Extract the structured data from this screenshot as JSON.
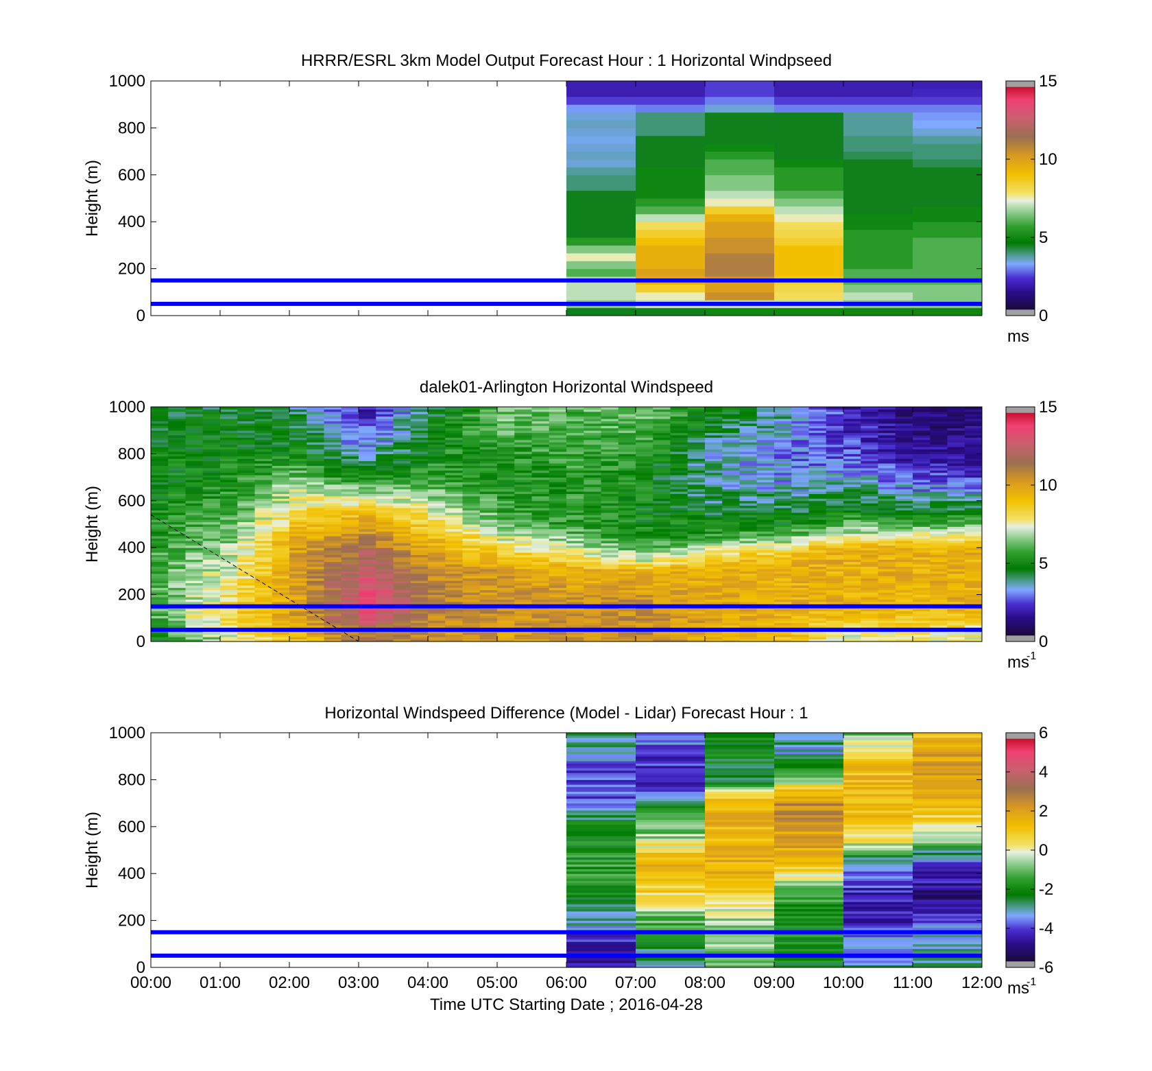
{
  "chart_data": [
    {
      "type": "heatmap",
      "title": "HRRR/ESRL 3km Model Output   Forecast Hour : 1 Horizontal Windpseed",
      "xlabel": "",
      "ylabel": "Height (m)",
      "xlim": [
        0,
        12
      ],
      "ylim": [
        0,
        1000
      ],
      "x_ticks": [
        "00:00",
        "01:00",
        "02:00",
        "03:00",
        "04:00",
        "05:00",
        "06:00",
        "07:00",
        "08:00",
        "09:00",
        "10:00",
        "11:00",
        "12:00"
      ],
      "y_ticks": [
        "0",
        "200",
        "400",
        "600",
        "800",
        "1000"
      ],
      "show_x_tick_labels": false,
      "colorbar": {
        "min": 0,
        "max": 15,
        "ticks": [
          "0",
          "5",
          "10",
          "15"
        ],
        "unit": "ms",
        "unit_exp": ""
      },
      "reference_heights_m": [
        50,
        150
      ],
      "columns": [
        {
          "x_start": 6,
          "x_end": 7,
          "values": [
            4.5,
            6.5,
            7,
            7,
            7,
            6,
            6.5,
            7.5,
            6.5,
            5.5,
            4.5,
            4.5,
            4.5,
            4.5,
            4.5,
            4.5,
            4,
            4,
            3.8,
            3.5,
            3.6,
            3.5,
            3.4,
            3.5,
            3.6,
            3.5,
            3.2,
            2.5,
            2,
            2
          ]
        },
        {
          "x_start": 7,
          "x_end": 8,
          "values": [
            4.5,
            7,
            7.5,
            8.5,
            9.5,
            10,
            9.5,
            9.5,
            9.5,
            9,
            8.5,
            8,
            7,
            6,
            5.5,
            5,
            5,
            5,
            5,
            4.5,
            4.5,
            4.5,
            4.5,
            4,
            4,
            4,
            3,
            2.5,
            2,
            2
          ]
        },
        {
          "x_start": 8,
          "x_end": 9,
          "values": [
            5,
            7,
            10.5,
            10,
            10,
            11,
            11,
            11,
            10.5,
            10.5,
            10,
            10,
            9.5,
            8.5,
            7.5,
            7,
            6.5,
            6.5,
            6,
            6,
            5.5,
            5,
            4.5,
            4.5,
            4.5,
            4.5,
            3.5,
            3,
            2.5,
            2.5
          ]
        },
        {
          "x_start": 9,
          "x_end": 10,
          "values": [
            5,
            7,
            8,
            8.2,
            8.5,
            9,
            9,
            9,
            9,
            8.5,
            8.2,
            8,
            7.5,
            7,
            6.5,
            6,
            5.5,
            5.5,
            5.5,
            5,
            4.5,
            4.5,
            4.5,
            4.5,
            4.5,
            4.5,
            3,
            2.5,
            2,
            2
          ]
        },
        {
          "x_start": 10,
          "x_end": 11,
          "values": [
            5,
            6.5,
            7,
            6.5,
            6,
            6,
            5.5,
            5.5,
            5.5,
            5.5,
            5.5,
            5,
            5,
            4.5,
            4.5,
            4.5,
            4.5,
            4.5,
            4.5,
            4.5,
            4.2,
            4,
            4,
            3.8,
            3.8,
            3.8,
            3,
            2.5,
            2,
            2
          ]
        },
        {
          "x_start": 11,
          "x_end": 12,
          "values": [
            5,
            6.5,
            6.5,
            6.5,
            6,
            6,
            6,
            6,
            6,
            6,
            5.5,
            5.5,
            5,
            5,
            4.5,
            4.5,
            4.5,
            4.5,
            4.5,
            4.2,
            4,
            4,
            3.8,
            3.5,
            3.3,
            3.2,
            3,
            2.5,
            2.2,
            2
          ]
        }
      ]
    },
    {
      "type": "heatmap",
      "title": "dalek01-Arlington  Horizontal Windspeed",
      "xlabel": "",
      "ylabel": "Height (m)",
      "xlim": [
        0,
        12
      ],
      "ylim": [
        0,
        1000
      ],
      "x_ticks": [
        "00:00",
        "01:00",
        "02:00",
        "03:00",
        "04:00",
        "05:00",
        "06:00",
        "07:00",
        "08:00",
        "09:00",
        "10:00",
        "11:00",
        "12:00"
      ],
      "y_ticks": [
        "0",
        "200",
        "400",
        "600",
        "800",
        "1000"
      ],
      "show_x_tick_labels": false,
      "colorbar": {
        "min": 0,
        "max": 15,
        "ticks": [
          "0",
          "5",
          "10",
          "15"
        ],
        "unit": "ms",
        "unit_exp": "-1"
      },
      "reference_heights_m": [
        50,
        150
      ],
      "time_keys_h": [
        0,
        1,
        2,
        3,
        4,
        5,
        6,
        7,
        8,
        9,
        10,
        11,
        11.85
      ],
      "profiles": [
        [
          [
            0,
            5
          ],
          [
            100,
            6
          ],
          [
            300,
            6
          ],
          [
            600,
            5
          ],
          [
            1000,
            4.5
          ]
        ],
        [
          [
            0,
            7
          ],
          [
            100,
            8.5
          ],
          [
            350,
            7
          ],
          [
            600,
            5.5
          ],
          [
            1000,
            4.5
          ]
        ],
        [
          [
            0,
            9
          ],
          [
            100,
            10
          ],
          [
            400,
            10
          ],
          [
            650,
            7
          ],
          [
            800,
            5
          ],
          [
            1000,
            4
          ]
        ],
        [
          [
            0,
            11
          ],
          [
            150,
            13.5
          ],
          [
            250,
            13
          ],
          [
            400,
            11.5
          ],
          [
            550,
            9
          ],
          [
            700,
            5
          ],
          [
            850,
            3
          ],
          [
            1000,
            2
          ]
        ],
        [
          [
            0,
            10.5
          ],
          [
            150,
            11
          ],
          [
            300,
            10.5
          ],
          [
            450,
            9
          ],
          [
            550,
            7.5
          ],
          [
            700,
            5.5
          ],
          [
            1000,
            4.5
          ]
        ],
        [
          [
            0,
            10
          ],
          [
            150,
            10.5
          ],
          [
            300,
            10
          ],
          [
            400,
            8
          ],
          [
            500,
            6
          ],
          [
            700,
            5
          ],
          [
            1000,
            6.5
          ]
        ],
        [
          [
            0,
            10.5
          ],
          [
            150,
            10.5
          ],
          [
            300,
            9.5
          ],
          [
            380,
            7.5
          ],
          [
            500,
            5.5
          ],
          [
            700,
            5.5
          ],
          [
            1000,
            6
          ]
        ],
        [
          [
            0,
            10.5
          ],
          [
            150,
            10.5
          ],
          [
            300,
            9.5
          ],
          [
            350,
            7
          ],
          [
            450,
            5
          ],
          [
            700,
            5
          ],
          [
            1000,
            6.5
          ]
        ],
        [
          [
            0,
            9.5
          ],
          [
            150,
            10
          ],
          [
            300,
            9.5
          ],
          [
            380,
            8
          ],
          [
            450,
            5.5
          ],
          [
            600,
            4
          ],
          [
            800,
            3.5
          ],
          [
            1000,
            5
          ]
        ],
        [
          [
            0,
            9
          ],
          [
            150,
            9.5
          ],
          [
            350,
            9.5
          ],
          [
            420,
            7
          ],
          [
            500,
            5
          ],
          [
            650,
            3.5
          ],
          [
            800,
            3
          ],
          [
            1000,
            4
          ]
        ],
        [
          [
            0,
            7
          ],
          [
            150,
            9.5
          ],
          [
            400,
            9.5
          ],
          [
            460,
            7
          ],
          [
            550,
            5
          ],
          [
            700,
            3.5
          ],
          [
            800,
            2.5
          ],
          [
            1000,
            2
          ]
        ],
        [
          [
            0,
            7.5
          ],
          [
            150,
            9.5
          ],
          [
            400,
            9.5
          ],
          [
            470,
            7
          ],
          [
            550,
            4.5
          ],
          [
            700,
            2.5
          ],
          [
            800,
            1.5
          ],
          [
            1000,
            1
          ]
        ],
        [
          [
            0,
            7
          ],
          [
            150,
            9.5
          ],
          [
            400,
            9.5
          ],
          [
            480,
            7
          ],
          [
            560,
            4.5
          ],
          [
            700,
            2.5
          ],
          [
            850,
            1.5
          ],
          [
            1000,
            0.8
          ]
        ]
      ]
    },
    {
      "type": "heatmap",
      "title": "Horizontal Windspeed Difference (Model - Lidar) Forecast Hour : 1",
      "xlabel": "Time UTC  Starting Date ; 2016-04-28",
      "ylabel": "Height (m)",
      "xlim": [
        0,
        12
      ],
      "ylim": [
        0,
        1000
      ],
      "x_ticks": [
        "00:00",
        "01:00",
        "02:00",
        "03:00",
        "04:00",
        "05:00",
        "06:00",
        "07:00",
        "08:00",
        "09:00",
        "10:00",
        "11:00",
        "12:00"
      ],
      "y_ticks": [
        "0",
        "200",
        "400",
        "600",
        "800",
        "1000"
      ],
      "show_x_tick_labels": true,
      "colorbar": {
        "min": -6,
        "max": 6,
        "ticks": [
          "-6",
          "-4",
          "-2",
          "0",
          "2",
          "4",
          "6"
        ],
        "unit": "ms",
        "unit_exp": "-1"
      },
      "reference_heights_m": [
        50,
        150
      ],
      "profiles_diff": [
        {
          "x_start": 6,
          "x_end": 7,
          "points": [
            [
              0,
              -4.5
            ],
            [
              100,
              -4.5
            ],
            [
              200,
              -3
            ],
            [
              400,
              -1.5
            ],
            [
              650,
              -2.5
            ],
            [
              720,
              -4
            ],
            [
              850,
              -4
            ],
            [
              1000,
              -2.5
            ]
          ]
        },
        {
          "x_start": 7,
          "x_end": 8,
          "points": [
            [
              0,
              -3
            ],
            [
              150,
              -2
            ],
            [
              300,
              0.5
            ],
            [
              450,
              1.5
            ],
            [
              550,
              -0.5
            ],
            [
              700,
              -2.5
            ],
            [
              780,
              -4.5
            ],
            [
              1000,
              -3.5
            ]
          ]
        },
        {
          "x_start": 8,
          "x_end": 9,
          "points": [
            [
              0,
              -1
            ],
            [
              200,
              -0.5
            ],
            [
              400,
              1.5
            ],
            [
              550,
              1.5
            ],
            [
              700,
              1.5
            ],
            [
              800,
              -2.5
            ],
            [
              1000,
              -2
            ]
          ]
        },
        {
          "x_start": 9,
          "x_end": 10,
          "points": [
            [
              0,
              -2
            ],
            [
              150,
              -2
            ],
            [
              300,
              -1.5
            ],
            [
              450,
              1.5
            ],
            [
              700,
              2.5
            ],
            [
              800,
              -0.5
            ],
            [
              900,
              -3
            ],
            [
              1000,
              -3
            ]
          ]
        },
        {
          "x_start": 10,
          "x_end": 11,
          "points": [
            [
              0,
              -3
            ],
            [
              150,
              -4
            ],
            [
              300,
              -4.5
            ],
            [
              450,
              -3
            ],
            [
              550,
              0.5
            ],
            [
              700,
              1.5
            ],
            [
              900,
              1
            ],
            [
              1000,
              -1
            ]
          ]
        },
        {
          "x_start": 11,
          "x_end": 12,
          "points": [
            [
              0,
              -3
            ],
            [
              150,
              -3
            ],
            [
              300,
              -5
            ],
            [
              450,
              -4
            ],
            [
              550,
              -0.5
            ],
            [
              700,
              1.5
            ],
            [
              900,
              2
            ],
            [
              1000,
              1
            ]
          ]
        }
      ]
    }
  ]
}
